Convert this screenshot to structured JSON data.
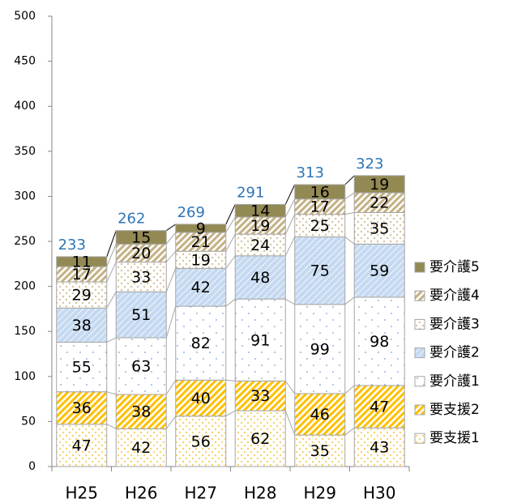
{
  "chart_data": {
    "type": "stacked_bar",
    "categories": [
      "H25",
      "H26",
      "H27",
      "H28",
      "H29",
      "H30"
    ],
    "series": [
      {
        "name": "要支援1",
        "color": "#f6d36b",
        "pattern": "dots",
        "values": [
          47,
          42,
          56,
          62,
          35,
          43
        ]
      },
      {
        "name": "要支援2",
        "color": "#ffc000",
        "pattern": "stripes",
        "values": [
          36,
          38,
          40,
          33,
          46,
          47
        ]
      },
      {
        "name": "要介護1",
        "color": "#7f9fd0",
        "pattern": "sparse-dots",
        "values": [
          55,
          63,
          82,
          91,
          99,
          98
        ]
      },
      {
        "name": "要介護2",
        "color": "#c5d9f1",
        "pattern": "fine",
        "values": [
          38,
          51,
          42,
          48,
          75,
          59
        ]
      },
      {
        "name": "要介護3",
        "color": "#d8c39a",
        "pattern": "dots",
        "values": [
          29,
          33,
          19,
          24,
          25,
          35
        ]
      },
      {
        "name": "要介護4",
        "color": "#c4b184",
        "pattern": "stripes",
        "values": [
          17,
          20,
          21,
          19,
          17,
          22
        ]
      },
      {
        "name": "要介護5",
        "color": "#938953",
        "pattern": "solid",
        "values": [
          11,
          15,
          9,
          14,
          16,
          19
        ]
      }
    ],
    "totals": [
      233,
      262,
      269,
      291,
      313,
      323
    ],
    "ylim": [
      0,
      500
    ],
    "yticks": [
      0,
      50,
      100,
      150,
      200,
      250,
      300,
      350,
      400,
      450,
      500
    ],
    "grid": false,
    "legend": "right"
  }
}
